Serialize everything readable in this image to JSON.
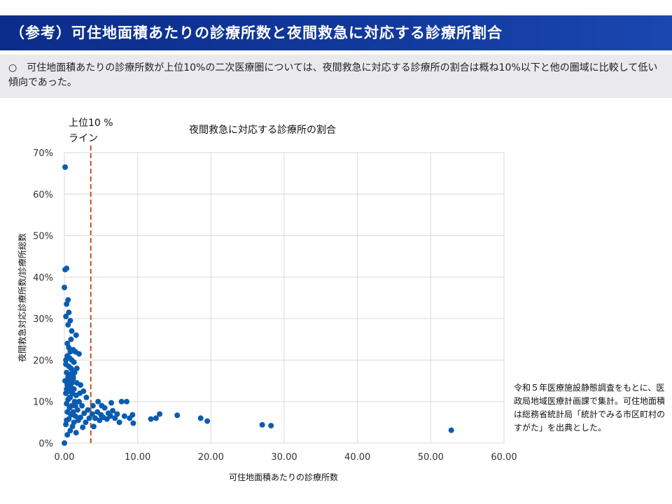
{
  "header": {
    "title": "（参考）可住地面積あたりの診療所数と夜間救急に対応する診療所割合"
  },
  "summary": {
    "text": "○　可住地面積あたりの診療所数が上位10%の二次医療圏については、夜間救急に対応する診療所の割合は概ね10%以下と他の圏域に比較して低い傾向であった。"
  },
  "note": {
    "text": "令和５年医療施設静態調査をもとに、医政局地域医療計画課で集計。可住地面積は総務省統計局「統計でみる市区町村のすがた」を出典とした。"
  },
  "colors": {
    "marker": "#0a5cb0",
    "reference_line": "#c0501f",
    "grid": "#d9d9d9",
    "header_bg": "#0c2c8a",
    "summary_bg": "#e9e9ee"
  },
  "chart_data": {
    "type": "scatter",
    "title": "夜間救急に対応する診療所の割合",
    "xlabel": "可住地面積あたりの診療所数",
    "ylabel": "夜間救急対応診療所数/診療所総数",
    "xlim": [
      0,
      60
    ],
    "ylim": [
      0,
      0.7
    ],
    "x_ticks": [
      "0.00",
      "10.00",
      "20.00",
      "30.00",
      "40.00",
      "50.00",
      "60.00"
    ],
    "y_ticks": [
      "0%",
      "10%",
      "20%",
      "30%",
      "40%",
      "50%",
      "60%",
      "70%"
    ],
    "grid": "vertical and horizontal",
    "reference_line": {
      "x": 3.6,
      "label_line1": "上位10 %",
      "label_line2": "ライン"
    },
    "points": [
      [
        0.1,
        0.665
      ],
      [
        0.1,
        0.418
      ],
      [
        0.3,
        0.421
      ],
      [
        0.0,
        0.375
      ],
      [
        0.5,
        0.345
      ],
      [
        0.3,
        0.335
      ],
      [
        0.6,
        0.315
      ],
      [
        0.2,
        0.305
      ],
      [
        0.8,
        0.295
      ],
      [
        0.5,
        0.285
      ],
      [
        1.6,
        0.26
      ],
      [
        0.9,
        0.25
      ],
      [
        1.2,
        0.225
      ],
      [
        1.5,
        0.22
      ],
      [
        2.0,
        0.215
      ],
      [
        0.4,
        0.21
      ],
      [
        0.7,
        0.205
      ],
      [
        1.0,
        0.2
      ],
      [
        1.3,
        0.195
      ],
      [
        0.2,
        0.19
      ],
      [
        0.6,
        0.185
      ],
      [
        0.9,
        0.18
      ],
      [
        1.1,
        0.175
      ],
      [
        0.3,
        0.17
      ],
      [
        1.4,
        0.17
      ],
      [
        0.8,
        0.165
      ],
      [
        0.5,
        0.16
      ],
      [
        1.2,
        0.155
      ],
      [
        0.1,
        0.15
      ],
      [
        0.7,
        0.15
      ],
      [
        1.0,
        0.145
      ],
      [
        1.7,
        0.145
      ],
      [
        0.4,
        0.14
      ],
      [
        2.2,
        0.14
      ],
      [
        0.9,
        0.135
      ],
      [
        1.3,
        0.13
      ],
      [
        0.6,
        0.125
      ],
      [
        2.6,
        0.125
      ],
      [
        1.1,
        0.12
      ],
      [
        0.2,
        0.12
      ],
      [
        1.6,
        0.115
      ],
      [
        0.8,
        0.11
      ],
      [
        3.0,
        0.11
      ],
      [
        0.5,
        0.105
      ],
      [
        1.4,
        0.1
      ],
      [
        2.0,
        0.1
      ],
      [
        0.3,
        0.095
      ],
      [
        1.0,
        0.09
      ],
      [
        2.4,
        0.09
      ],
      [
        0.7,
        0.085
      ],
      [
        1.8,
        0.08
      ],
      [
        3.2,
        0.08
      ],
      [
        0.4,
        0.075
      ],
      [
        1.2,
        0.075
      ],
      [
        2.7,
        0.072
      ],
      [
        0.9,
        0.068
      ],
      [
        1.5,
        0.065
      ],
      [
        2.2,
        0.062
      ],
      [
        3.4,
        0.06
      ],
      [
        0.6,
        0.058
      ],
      [
        1.9,
        0.055
      ],
      [
        2.9,
        0.05
      ],
      [
        0.2,
        0.045
      ],
      [
        1.1,
        0.04
      ],
      [
        2.5,
        0.038
      ],
      [
        0.8,
        0.03
      ],
      [
        1.6,
        0.025
      ],
      [
        0.4,
        0.02
      ],
      [
        0.0,
        0.0
      ],
      [
        0.3,
        0.055
      ],
      [
        0.7,
        0.11
      ],
      [
        1.1,
        0.13
      ],
      [
        1.5,
        0.09
      ],
      [
        0.9,
        0.07
      ],
      [
        1.3,
        0.05
      ],
      [
        0.5,
        0.14
      ],
      [
        0.2,
        0.2
      ],
      [
        0.6,
        0.23
      ],
      [
        1.0,
        0.27
      ],
      [
        0.4,
        0.24
      ],
      [
        1.7,
        0.18
      ],
      [
        0.8,
        0.22
      ],
      [
        1.2,
        0.16
      ],
      [
        2.1,
        0.12
      ],
      [
        0.3,
        0.13
      ],
      [
        3.8,
        0.07
      ],
      [
        4.2,
        0.06
      ],
      [
        4.5,
        0.075
      ],
      [
        4.8,
        0.055
      ],
      [
        5.0,
        0.068
      ],
      [
        5.3,
        0.062
      ],
      [
        5.5,
        0.085
      ],
      [
        5.8,
        0.058
      ],
      [
        6.0,
        0.072
      ],
      [
        6.3,
        0.065
      ],
      [
        6.6,
        0.078
      ],
      [
        6.9,
        0.06
      ],
      [
        7.2,
        0.07
      ],
      [
        7.5,
        0.05
      ],
      [
        7.8,
        0.1
      ],
      [
        8.2,
        0.065
      ],
      [
        8.5,
        0.1
      ],
      [
        8.9,
        0.06
      ],
      [
        9.3,
        0.068
      ],
      [
        9.4,
        0.048
      ],
      [
        4.0,
        0.04
      ],
      [
        3.9,
        0.09
      ],
      [
        4.6,
        0.1
      ],
      [
        5.1,
        0.09
      ],
      [
        6.4,
        0.097
      ],
      [
        11.8,
        0.058
      ],
      [
        12.5,
        0.06
      ],
      [
        13.0,
        0.07
      ],
      [
        15.4,
        0.067
      ],
      [
        18.6,
        0.06
      ],
      [
        19.5,
        0.053
      ],
      [
        27.0,
        0.044
      ],
      [
        28.2,
        0.042
      ],
      [
        52.8,
        0.031
      ]
    ]
  }
}
